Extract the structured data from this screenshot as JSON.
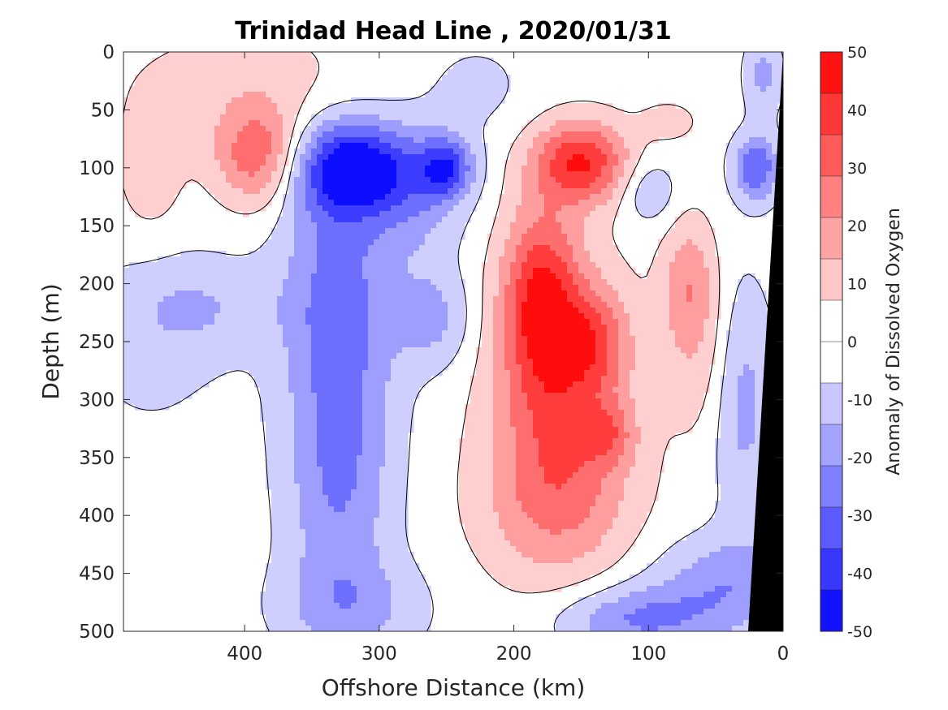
{
  "chart_data": {
    "type": "heatmap",
    "title": "Trinidad Head Line , 2020/01/31",
    "xlabel": "Offshore Distance (km)",
    "ylabel": "Depth (m)",
    "colorbar_label": "Anomaly of Dissolved Oxygen",
    "xlim": [
      490,
      0
    ],
    "ylim": [
      0,
      500
    ],
    "x_reversed": true,
    "y_reversed": true,
    "x_ticks": [
      400,
      300,
      200,
      100,
      0
    ],
    "y_ticks": [
      0,
      50,
      100,
      150,
      200,
      250,
      300,
      350,
      400,
      450,
      500
    ],
    "colorbar_ticks": [
      50,
      40,
      30,
      20,
      10,
      0,
      -10,
      -20,
      -30,
      -40,
      -50
    ],
    "color_range": [
      -50,
      50
    ],
    "colormap": {
      "negative": "#0000ff",
      "zero": "#ffffff",
      "positive": "#ff0000"
    },
    "contour_level": 0,
    "bottom_mask_color": "#000000",
    "features": [
      {
        "center": [
          320,
          100
        ],
        "value": -50,
        "sx": 30,
        "sy": 28
      },
      {
        "center": [
          330,
          210
        ],
        "value": -28,
        "sx": 30,
        "sy": 90
      },
      {
        "center": [
          330,
          380
        ],
        "value": -22,
        "sx": 28,
        "sy": 80
      },
      {
        "center": [
          250,
          100
        ],
        "value": -35,
        "sx": 14,
        "sy": 18
      },
      {
        "center": [
          270,
          120
        ],
        "value": -18,
        "sx": 25,
        "sy": 40
      },
      {
        "center": [
          320,
          480
        ],
        "value": -15,
        "sx": 40,
        "sy": 30
      },
      {
        "center": [
          150,
          95
        ],
        "value": 45,
        "sx": 25,
        "sy": 25
      },
      {
        "center": [
          180,
          210
        ],
        "value": 38,
        "sx": 20,
        "sy": 55
      },
      {
        "center": [
          165,
          290
        ],
        "value": 30,
        "sx": 35,
        "sy": 75
      },
      {
        "center": [
          170,
          390
        ],
        "value": 20,
        "sx": 40,
        "sy": 50
      },
      {
        "center": [
          140,
          250
        ],
        "value": 22,
        "sx": 18,
        "sy": 30
      },
      {
        "center": [
          390,
          90
        ],
        "value": 32,
        "sx": 22,
        "sy": 30
      },
      {
        "center": [
          390,
          30
        ],
        "value": 10,
        "sx": 70,
        "sy": 40
      },
      {
        "center": [
          470,
          110
        ],
        "value": 10,
        "sx": 18,
        "sy": 40
      },
      {
        "center": [
          70,
          200
        ],
        "value": 22,
        "sx": 14,
        "sy": 40
      },
      {
        "center": [
          60,
          270
        ],
        "value": 10,
        "sx": 20,
        "sy": 50
      },
      {
        "center": [
          85,
          60
        ],
        "value": 10,
        "sx": 15,
        "sy": 12
      },
      {
        "center": [
          20,
          100
        ],
        "value": -35,
        "sx": 12,
        "sy": 20
      },
      {
        "center": [
          15,
          20
        ],
        "value": -18,
        "sx": 10,
        "sy": 25
      },
      {
        "center": [
          30,
          300
        ],
        "value": -20,
        "sx": 16,
        "sy": 70
      },
      {
        "center": [
          40,
          460
        ],
        "value": -22,
        "sx": 40,
        "sy": 30
      },
      {
        "center": [
          110,
          490
        ],
        "value": -25,
        "sx": 40,
        "sy": 20
      },
      {
        "center": [
          100,
          120
        ],
        "value": -15,
        "sx": 15,
        "sy": 20
      },
      {
        "center": [
          430,
          220
        ],
        "value": -12,
        "sx": 40,
        "sy": 30
      },
      {
        "center": [
          470,
          250
        ],
        "value": -8,
        "sx": 40,
        "sy": 60
      },
      {
        "center": [
          260,
          230
        ],
        "value": -18,
        "sx": 20,
        "sy": 30
      },
      {
        "center": [
          130,
          330
        ],
        "value": 18,
        "sx": 14,
        "sy": 18
      },
      {
        "center": [
          230,
          30
        ],
        "value": -8,
        "sx": 30,
        "sy": 30
      }
    ]
  }
}
